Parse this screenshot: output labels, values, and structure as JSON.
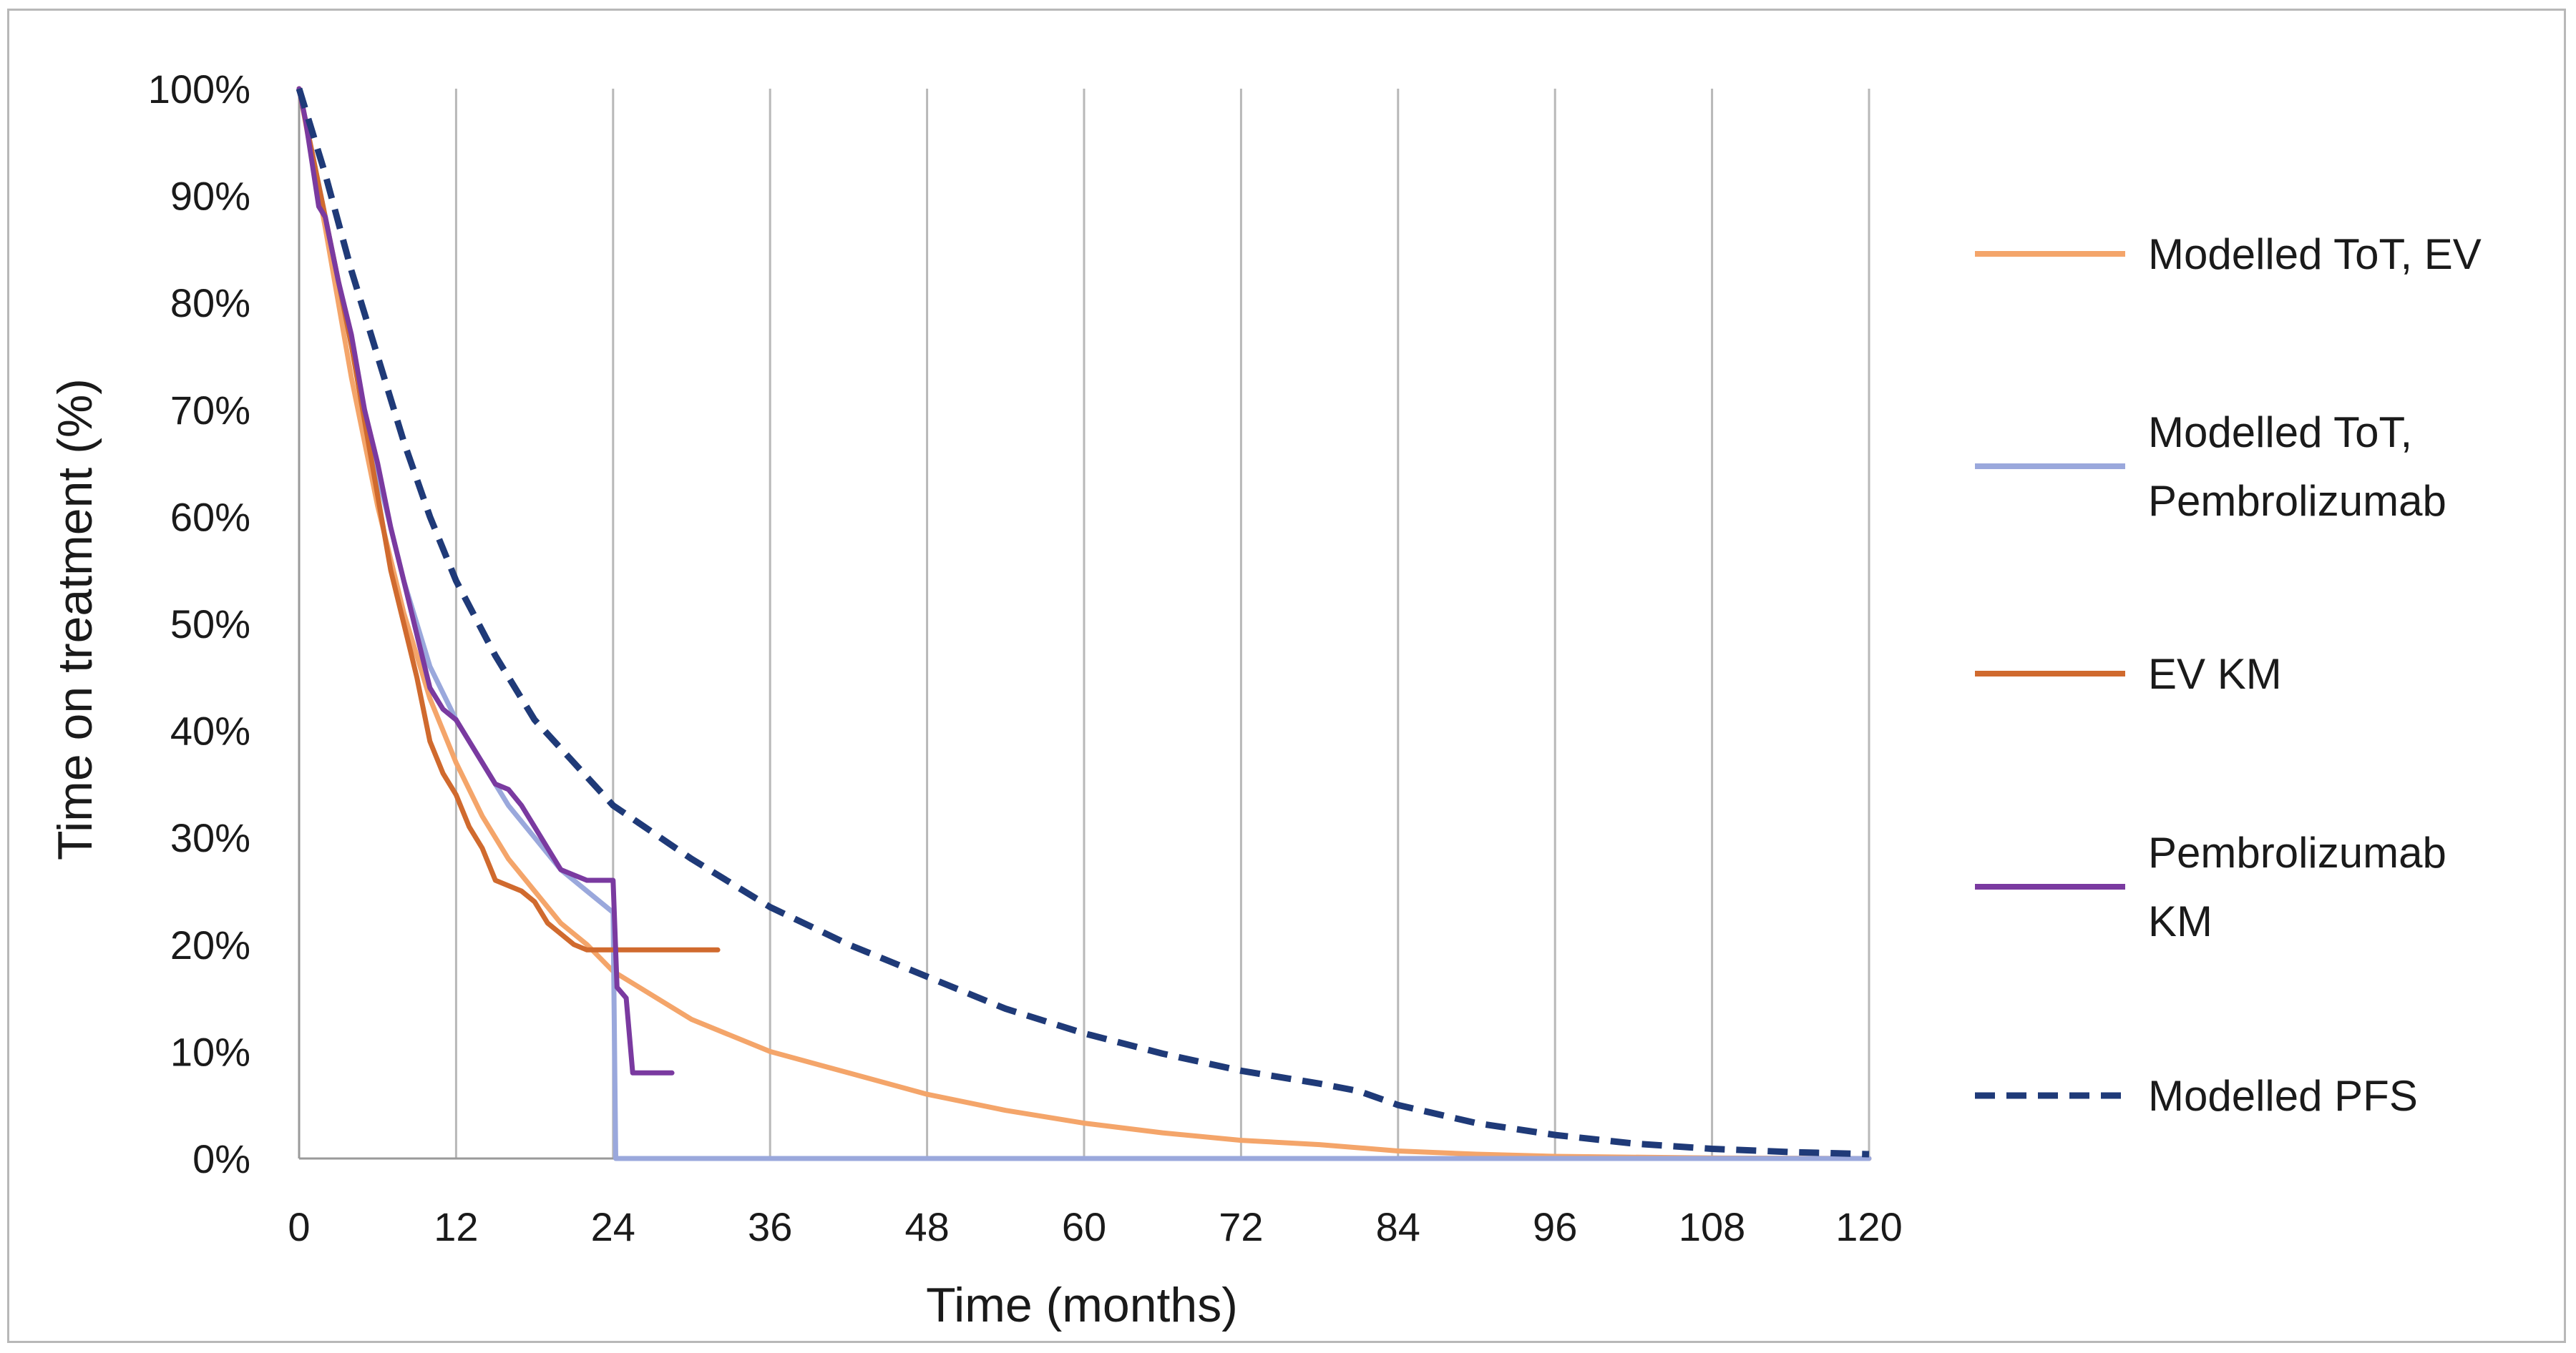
{
  "chart_data": {
    "type": "line",
    "title": "",
    "xlabel": "Time (months)",
    "ylabel": "Time on treatment  (%)",
    "xlim": [
      0,
      120
    ],
    "ylim": [
      0,
      100
    ],
    "x_ticks": [
      "0",
      "12",
      "24",
      "36",
      "48",
      "60",
      "72",
      "84",
      "96",
      "108",
      "120"
    ],
    "x_tick_values": [
      0,
      12,
      24,
      36,
      48,
      60,
      72,
      84,
      96,
      108,
      120
    ],
    "y_ticks": [
      "0%",
      "10%",
      "20%",
      "30%",
      "40%",
      "50%",
      "60%",
      "70%",
      "80%",
      "90%",
      "100%"
    ],
    "y_tick_values": [
      0,
      10,
      20,
      30,
      40,
      50,
      60,
      70,
      80,
      90,
      100
    ],
    "grid": "vertical",
    "legend_position": "right",
    "series": [
      {
        "name": "Modelled ToT, EV",
        "color": "#f4a56a",
        "style": "solid",
        "points": [
          [
            0,
            100
          ],
          [
            2,
            87
          ],
          [
            4,
            73
          ],
          [
            6,
            61
          ],
          [
            8,
            51
          ],
          [
            10,
            43
          ],
          [
            12,
            37
          ],
          [
            14,
            32
          ],
          [
            16,
            28
          ],
          [
            18,
            25
          ],
          [
            20,
            22
          ],
          [
            22,
            20
          ],
          [
            24,
            17.5
          ],
          [
            30,
            13
          ],
          [
            36,
            10
          ],
          [
            42,
            8
          ],
          [
            48,
            6
          ],
          [
            54,
            4.5
          ],
          [
            60,
            3.3
          ],
          [
            66,
            2.4
          ],
          [
            72,
            1.7
          ],
          [
            78,
            1.3
          ],
          [
            84,
            0.7
          ],
          [
            90,
            0.4
          ],
          [
            96,
            0.2
          ],
          [
            108,
            0.05
          ],
          [
            120,
            0
          ]
        ]
      },
      {
        "name": "Modelled ToT, Pembrolizumab",
        "color": "#9aa8dc",
        "style": "solid",
        "points": [
          [
            0,
            100
          ],
          [
            2,
            88
          ],
          [
            4,
            76
          ],
          [
            6,
            64
          ],
          [
            8,
            54
          ],
          [
            10,
            46
          ],
          [
            12,
            41
          ],
          [
            14,
            37
          ],
          [
            16,
            33
          ],
          [
            18,
            30
          ],
          [
            20,
            27
          ],
          [
            22,
            25
          ],
          [
            24,
            23
          ],
          [
            24.2,
            0
          ],
          [
            120,
            0
          ]
        ]
      },
      {
        "name": "EV KM",
        "color": "#d06a2e",
        "style": "solid",
        "points": [
          [
            0,
            100
          ],
          [
            0.5,
            97
          ],
          [
            1,
            94
          ],
          [
            2,
            88
          ],
          [
            3,
            82
          ],
          [
            4,
            76
          ],
          [
            5,
            69
          ],
          [
            6,
            62
          ],
          [
            7,
            55
          ],
          [
            8,
            50
          ],
          [
            9,
            45
          ],
          [
            10,
            39
          ],
          [
            11,
            36
          ],
          [
            12,
            34
          ],
          [
            13,
            31
          ],
          [
            14,
            29
          ],
          [
            15,
            26
          ],
          [
            16,
            25.5
          ],
          [
            17,
            25
          ],
          [
            18,
            24
          ],
          [
            19,
            22
          ],
          [
            20,
            21
          ],
          [
            21,
            20
          ],
          [
            22,
            19.5
          ],
          [
            23,
            19.5
          ],
          [
            32,
            19.5
          ]
        ]
      },
      {
        "name": "Pembrolizumab KM",
        "color": "#7a3aa0",
        "style": "solid",
        "points": [
          [
            0,
            100
          ],
          [
            0.5,
            97
          ],
          [
            1,
            93
          ],
          [
            1.5,
            89
          ],
          [
            2,
            88
          ],
          [
            3,
            82
          ],
          [
            4,
            77
          ],
          [
            5,
            70
          ],
          [
            6,
            65
          ],
          [
            7,
            59
          ],
          [
            8,
            54
          ],
          [
            9,
            49
          ],
          [
            10,
            44
          ],
          [
            11,
            42
          ],
          [
            12,
            41
          ],
          [
            13,
            39
          ],
          [
            14,
            37
          ],
          [
            15,
            35
          ],
          [
            16,
            34.5
          ],
          [
            17,
            33
          ],
          [
            18,
            31
          ],
          [
            19,
            29
          ],
          [
            20,
            27
          ],
          [
            21,
            26.5
          ],
          [
            22,
            26
          ],
          [
            24,
            26
          ],
          [
            24.3,
            16
          ],
          [
            25,
            15
          ],
          [
            25.5,
            8
          ],
          [
            28.5,
            8
          ]
        ]
      },
      {
        "name": "Modelled PFS",
        "color": "#1f3a78",
        "style": "dashed",
        "points": [
          [
            0,
            100
          ],
          [
            2,
            92
          ],
          [
            4,
            83
          ],
          [
            6,
            75
          ],
          [
            8,
            67
          ],
          [
            10,
            60
          ],
          [
            12,
            54
          ],
          [
            15,
            47
          ],
          [
            18,
            41
          ],
          [
            21,
            37
          ],
          [
            24,
            33
          ],
          [
            30,
            28
          ],
          [
            36,
            23.5
          ],
          [
            42,
            20
          ],
          [
            48,
            17
          ],
          [
            54,
            14
          ],
          [
            60,
            11.7
          ],
          [
            66,
            9.8
          ],
          [
            72,
            8.2
          ],
          [
            78,
            7
          ],
          [
            81,
            6.3
          ],
          [
            84,
            5
          ],
          [
            90,
            3.3
          ],
          [
            96,
            2.2
          ],
          [
            102,
            1.4
          ],
          [
            108,
            0.9
          ],
          [
            114,
            0.6
          ],
          [
            120,
            0.4
          ]
        ]
      }
    ],
    "legend": [
      {
        "lines": [
          "Modelled ToT, EV"
        ],
        "series": 0
      },
      {
        "lines": [
          "Modelled ToT,",
          "Pembrolizumab"
        ],
        "series": 1
      },
      {
        "lines": [
          "EV KM"
        ],
        "series": 2
      },
      {
        "lines": [
          "Pembrolizumab",
          "KM"
        ],
        "series": 3
      },
      {
        "lines": [
          "Modelled PFS"
        ],
        "series": 4
      }
    ]
  }
}
